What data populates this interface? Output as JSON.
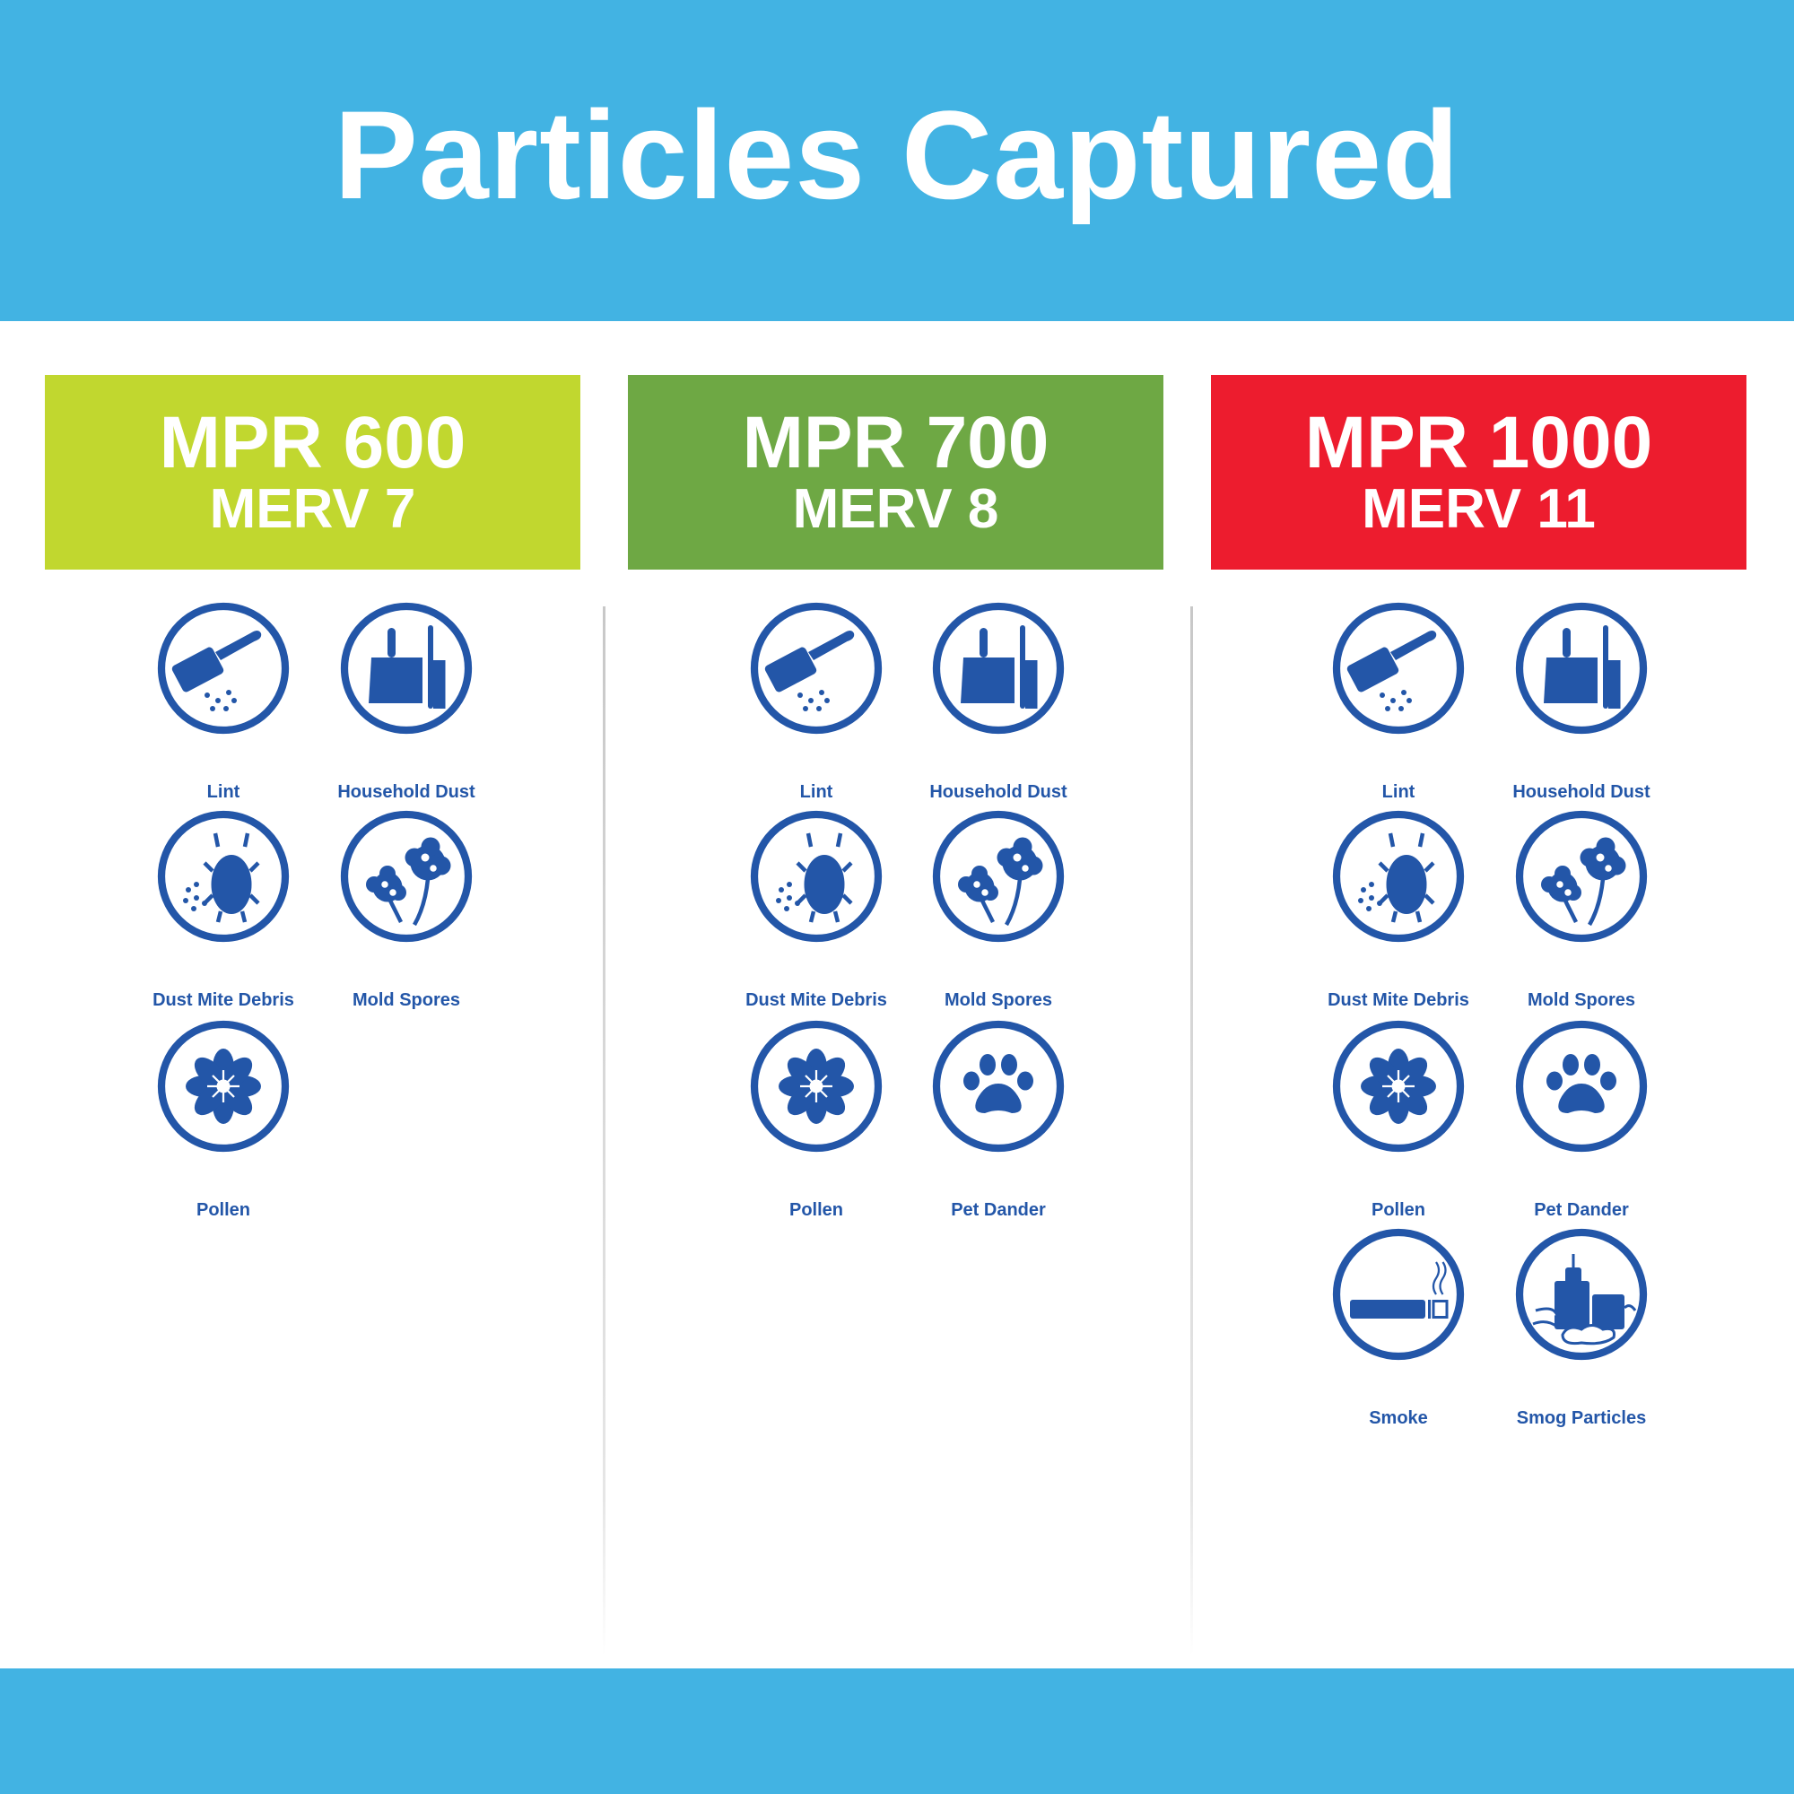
{
  "title": "Particles Captured",
  "colors": {
    "band": "#42b3e3",
    "icon": "#2356a8"
  },
  "columns": [
    {
      "mpr": "MPR 600",
      "merv": "MERV 7",
      "color": "#c1d72f",
      "items": [
        {
          "label": "Lint",
          "icon": "lint-roller-icon"
        },
        {
          "label": "Household Dust",
          "icon": "dustpan-brush-icon"
        },
        {
          "label": "Dust Mite Debris",
          "icon": "dust-mite-icon"
        },
        {
          "label": "Mold Spores",
          "icon": "mold-spores-icon"
        },
        {
          "label": "Pollen",
          "icon": "pollen-icon"
        }
      ]
    },
    {
      "mpr": "MPR 700",
      "merv": "MERV 8",
      "color": "#6ea844",
      "items": [
        {
          "label": "Lint",
          "icon": "lint-roller-icon"
        },
        {
          "label": "Household Dust",
          "icon": "dustpan-brush-icon"
        },
        {
          "label": "Dust Mite Debris",
          "icon": "dust-mite-icon"
        },
        {
          "label": "Mold Spores",
          "icon": "mold-spores-icon"
        },
        {
          "label": "Pollen",
          "icon": "pollen-icon"
        },
        {
          "label": "Pet Dander",
          "icon": "paw-print-icon"
        }
      ]
    },
    {
      "mpr": "MPR 1000",
      "merv": "MERV 11",
      "color": "#ed1c2e",
      "items": [
        {
          "label": "Lint",
          "icon": "lint-roller-icon"
        },
        {
          "label": "Household Dust",
          "icon": "dustpan-brush-icon"
        },
        {
          "label": "Dust Mite Debris",
          "icon": "dust-mite-icon"
        },
        {
          "label": "Mold Spores",
          "icon": "mold-spores-icon"
        },
        {
          "label": "Pollen",
          "icon": "pollen-icon"
        },
        {
          "label": "Pet Dander",
          "icon": "paw-print-icon"
        },
        {
          "label": "Smoke",
          "icon": "cigarette-icon"
        },
        {
          "label": "Smog Particles",
          "icon": "city-smog-icon"
        }
      ]
    }
  ]
}
